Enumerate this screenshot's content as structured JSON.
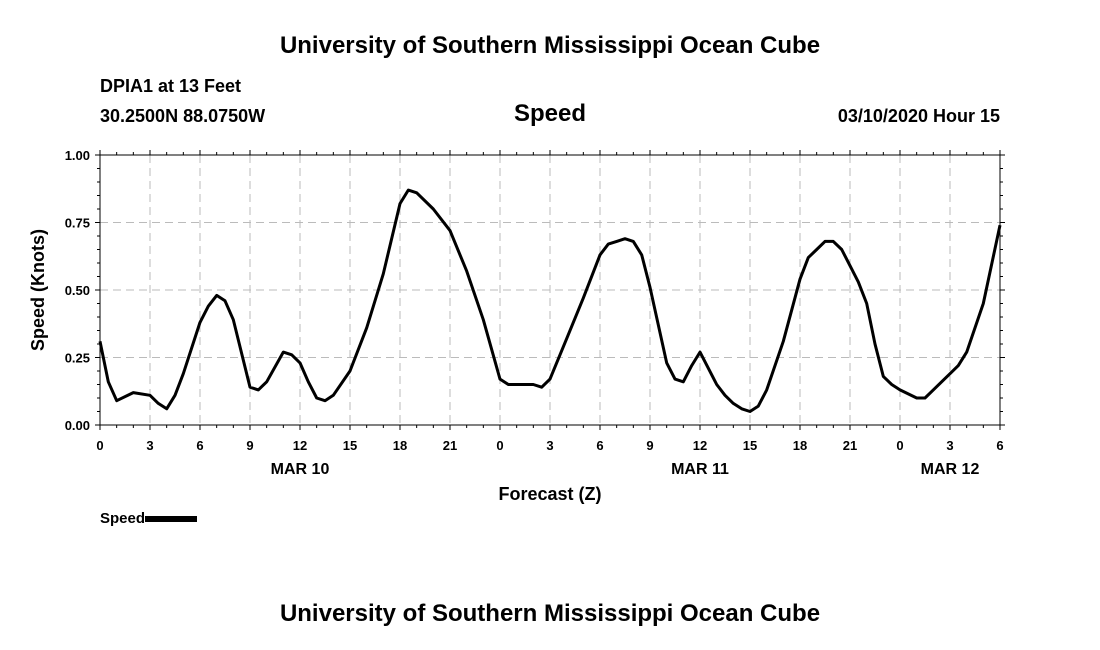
{
  "header": {
    "title": "University of Southern Mississippi Ocean Cube",
    "station": "DPIA1 at 13 Feet",
    "coords": "30.2500N 88.0750W",
    "variable": "Speed",
    "datetime": "03/10/2020 Hour 15"
  },
  "footer": {
    "title": "University of Southern Mississippi Ocean Cube"
  },
  "legend": {
    "label": "Speed",
    "color": "#000000"
  },
  "chart_data": {
    "type": "line",
    "xlabel": "Forecast (Z)",
    "ylabel": "Speed (Knots)",
    "xlim": [
      0,
      54
    ],
    "ylim": [
      0,
      1
    ],
    "grid": true,
    "legend_position": "bottom-left",
    "yticks": [
      {
        "v": 0,
        "label": "0.00"
      },
      {
        "v": 0.25,
        "label": "0.25"
      },
      {
        "v": 0.5,
        "label": "0.50"
      },
      {
        "v": 0.75,
        "label": "0.75"
      },
      {
        "v": 1,
        "label": "1.00"
      }
    ],
    "xticks": [
      {
        "v": 0,
        "label": "0"
      },
      {
        "v": 3,
        "label": "3"
      },
      {
        "v": 6,
        "label": "6"
      },
      {
        "v": 9,
        "label": "9"
      },
      {
        "v": 12,
        "label": "12"
      },
      {
        "v": 15,
        "label": "15"
      },
      {
        "v": 18,
        "label": "18"
      },
      {
        "v": 21,
        "label": "21"
      },
      {
        "v": 24,
        "label": "0"
      },
      {
        "v": 27,
        "label": "3"
      },
      {
        "v": 30,
        "label": "6"
      },
      {
        "v": 33,
        "label": "9"
      },
      {
        "v": 36,
        "label": "12"
      },
      {
        "v": 39,
        "label": "15"
      },
      {
        "v": 42,
        "label": "18"
      },
      {
        "v": 45,
        "label": "21"
      },
      {
        "v": 48,
        "label": "0"
      },
      {
        "v": 51,
        "label": "3"
      },
      {
        "v": 54,
        "label": "6"
      }
    ],
    "date_labels": [
      {
        "v": 12,
        "label": "MAR 10"
      },
      {
        "v": 36,
        "label": "MAR 11"
      },
      {
        "v": 51,
        "label": "MAR 12"
      }
    ],
    "series": [
      {
        "name": "Speed",
        "color": "#000000",
        "x": [
          0,
          0.5,
          1,
          2,
          3,
          3.5,
          4,
          4.5,
          5,
          6,
          6.5,
          7,
          7.5,
          8,
          9,
          9.5,
          10,
          11,
          11.5,
          12,
          12.5,
          13,
          13.5,
          14,
          15,
          16,
          17,
          18,
          18.5,
          19,
          20,
          21,
          22,
          23,
          24,
          24.5,
          25,
          26,
          26.5,
          27,
          28,
          29,
          30,
          30.5,
          31,
          31.5,
          32,
          32.5,
          33,
          34,
          34.5,
          35,
          35.5,
          36,
          37,
          37.5,
          38,
          38.5,
          39,
          39.5,
          40,
          41,
          42,
          42.5,
          43,
          43.5,
          44,
          44.5,
          45,
          45.5,
          46,
          46.5,
          47,
          47.5,
          48,
          49,
          49.5,
          50,
          51,
          51.5,
          52,
          53,
          54
        ],
        "y": [
          0.31,
          0.16,
          0.09,
          0.12,
          0.11,
          0.08,
          0.06,
          0.11,
          0.19,
          0.38,
          0.44,
          0.48,
          0.46,
          0.39,
          0.14,
          0.13,
          0.16,
          0.27,
          0.26,
          0.23,
          0.16,
          0.1,
          0.09,
          0.11,
          0.2,
          0.36,
          0.56,
          0.82,
          0.87,
          0.86,
          0.8,
          0.72,
          0.57,
          0.39,
          0.17,
          0.15,
          0.15,
          0.15,
          0.14,
          0.17,
          0.32,
          0.47,
          0.63,
          0.67,
          0.68,
          0.69,
          0.68,
          0.63,
          0.51,
          0.23,
          0.17,
          0.16,
          0.22,
          0.27,
          0.15,
          0.11,
          0.08,
          0.06,
          0.05,
          0.07,
          0.13,
          0.31,
          0.54,
          0.62,
          0.65,
          0.68,
          0.68,
          0.65,
          0.59,
          0.53,
          0.45,
          0.3,
          0.18,
          0.15,
          0.13,
          0.1,
          0.1,
          0.13,
          0.19,
          0.22,
          0.27,
          0.45,
          0.74
        ]
      }
    ]
  }
}
